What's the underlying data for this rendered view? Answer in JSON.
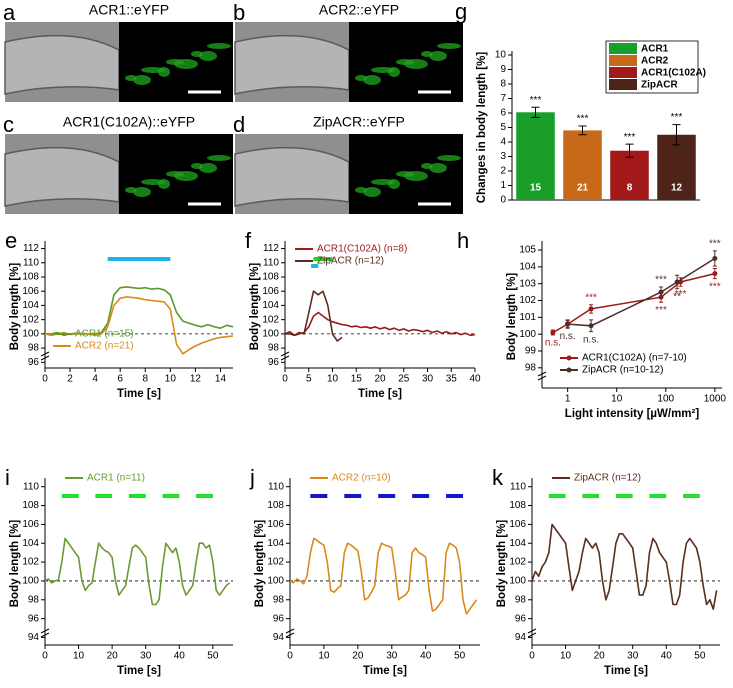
{
  "image_panels": [
    {
      "letter": "a",
      "label": "ACR1::eYFP"
    },
    {
      "letter": "b",
      "label": "ACR2::eYFP"
    },
    {
      "letter": "c",
      "label": "ACR1(C102A)::eYFP"
    },
    {
      "letter": "d",
      "label": "ZipACR::eYFP"
    }
  ],
  "chart_data": [
    {
      "type": "bar",
      "panel": "g",
      "ylabel": "Changes in body length [%]",
      "categories": [
        "ACR1",
        "ACR2",
        "ACR1(C102A)",
        "ZipACR"
      ],
      "values": [
        6.05,
        4.8,
        3.4,
        4.5
      ],
      "errors": [
        0.35,
        0.3,
        0.45,
        0.7
      ],
      "colors": [
        "#1a9e2a",
        "#c8691a",
        "#a31818",
        "#4e2418"
      ],
      "n": [
        15,
        21,
        8,
        12
      ],
      "significance": [
        "***",
        "***",
        "***",
        "***"
      ],
      "ylim": [
        0,
        10
      ],
      "yticks": [
        0,
        1,
        2,
        3,
        4,
        5,
        6,
        7,
        8,
        9,
        10
      ],
      "legend": "top-right"
    },
    {
      "type": "line",
      "panel": "e",
      "xlabel": "Time [s]",
      "ylabel": "Body length [%]",
      "x": [
        0,
        0.5,
        1,
        1.5,
        2,
        2.5,
        3,
        3.5,
        4,
        4.5,
        5,
        5.5,
        6,
        6.5,
        7,
        7.5,
        8,
        8.5,
        9,
        9.5,
        10,
        10.5,
        11,
        11.5,
        12,
        12.5,
        13,
        13.5,
        14,
        14.5,
        15
      ],
      "series": [
        {
          "name": "ACR1 (n=15)",
          "color": "#5a9a2a",
          "values": [
            100,
            100,
            100.2,
            99.8,
            100,
            100.1,
            100,
            100,
            100,
            100.2,
            101.5,
            105.5,
            106.5,
            106.6,
            106.5,
            106.4,
            106.5,
            106.3,
            106.4,
            106.2,
            105.5,
            103,
            101.8,
            101.5,
            101.2,
            101,
            101.3,
            101,
            100.8,
            101.2,
            101
          ]
        },
        {
          "name": "ACR2 (n=21)",
          "color": "#d98a1a",
          "values": [
            100,
            99.8,
            100,
            100.2,
            99.9,
            100,
            100.1,
            100,
            99.8,
            100,
            101,
            104,
            105,
            105.2,
            105.1,
            105,
            104.8,
            104.7,
            104.6,
            104.5,
            103.5,
            98.5,
            97.2,
            97.8,
            98.3,
            98.7,
            99,
            99.3,
            99.5,
            99.6,
            99.7
          ]
        }
      ],
      "reference": 100,
      "stimuli": [
        {
          "color": "#1eb4e6",
          "ranges": [
            [
              5,
              10
            ]
          ]
        }
      ],
      "xlim": [
        0,
        15
      ],
      "xticks": [
        0,
        2,
        4,
        6,
        8,
        10,
        12,
        14
      ],
      "ylim": [
        95.2,
        112.5
      ],
      "yticks": [
        96,
        98,
        100,
        102,
        104,
        106,
        108,
        110,
        112
      ],
      "legend": "lower-left"
    },
    {
      "type": "line",
      "panel": "f",
      "xlabel": "Time [s]",
      "ylabel": "Body length [%]",
      "x": [
        0,
        1,
        2,
        3,
        4,
        5,
        6,
        7,
        8,
        9,
        10,
        11,
        12,
        13,
        14,
        15,
        16,
        17,
        18,
        19,
        20,
        21,
        22,
        23,
        24,
        25,
        26,
        27,
        28,
        29,
        30,
        31,
        32,
        33,
        34,
        35,
        36,
        37,
        38,
        39,
        40
      ],
      "series": [
        {
          "name": "ACR1(C102A) (n=8)",
          "color": "#9b1b1b",
          "values": [
            100,
            100.3,
            99.8,
            100,
            100.2,
            101,
            102.5,
            103,
            102.5,
            102,
            101.7,
            101.5,
            101.3,
            101.2,
            101,
            101.1,
            100.9,
            101,
            100.8,
            101,
            100.7,
            100.9,
            100.6,
            100.8,
            100.5,
            100.7,
            100.4,
            100.6,
            100.5,
            100.3,
            100.5,
            100.2,
            100.4,
            100.1,
            100.3,
            100,
            100.2,
            99.9,
            100.1,
            99.8,
            99.9
          ]
        },
        {
          "name": "ZipACR (n=12)",
          "color": "#5a2e1e",
          "values": [
            100,
            100,
            99.8,
            100.2,
            100,
            103,
            106,
            105.5,
            106,
            104,
            100,
            99,
            99.5,
            null,
            null,
            null,
            null,
            null,
            null,
            null,
            null,
            null,
            null,
            null,
            null,
            null,
            null,
            null,
            null,
            null,
            null,
            null,
            null,
            null,
            null,
            null,
            null,
            null,
            null,
            null,
            null
          ]
        }
      ],
      "reference": 100,
      "stimuli": [
        {
          "color": "#22d42a",
          "ranges": [
            [
              6,
              10
            ]
          ]
        },
        {
          "color": "#1eb4e6",
          "ranges": [
            [
              5.5,
              7
            ]
          ]
        }
      ],
      "xlim": [
        0,
        40
      ],
      "xticks": [
        0,
        5,
        10,
        15,
        20,
        25,
        30,
        35,
        40
      ],
      "ylim": [
        95.2,
        112.5
      ],
      "yticks": [
        96,
        98,
        100,
        102,
        104,
        106,
        108,
        110,
        112
      ],
      "legend": "top-left"
    },
    {
      "type": "scatter-line",
      "panel": "h",
      "xlabel": "Light intensity [µW/mm²]",
      "ylabel": "Body length [%]",
      "xlog": true,
      "series": [
        {
          "name": "ACR1(C102A) (n=7-10)",
          "color": "#9b1b1b",
          "x": [
            0.5,
            1,
            3,
            80,
            200,
            1000
          ],
          "values": [
            100.1,
            100.6,
            101.5,
            102.2,
            103.1,
            103.6
          ],
          "errors": [
            0.15,
            0.2,
            0.25,
            0.3,
            0.25,
            0.3
          ],
          "point_labels": [
            "n.s.",
            null,
            "***",
            "***",
            "***",
            "***"
          ]
        },
        {
          "name": "ZipACR (n=10-12)",
          "color": "#4e2e26",
          "x": [
            1,
            3,
            80,
            170,
            1000
          ],
          "values": [
            100.6,
            100.5,
            102.5,
            103.1,
            104.5
          ],
          "errors": [
            0.25,
            0.35,
            0.3,
            0.4,
            0.45
          ],
          "point_labels": [
            "n.s.",
            "n.s.",
            "***",
            "**",
            "***"
          ]
        }
      ],
      "xlim": [
        0.3,
        1400
      ],
      "xticks": [
        1,
        10,
        100,
        1000
      ],
      "ylim": [
        96.8,
        105.3
      ],
      "yticks": [
        98,
        99,
        100,
        101,
        102,
        103,
        104,
        105
      ],
      "legend": "lower-right"
    },
    {
      "type": "line",
      "panel": "i",
      "xlabel": "Time [s]",
      "ylabel": "Body length [%]",
      "x": [
        0,
        1,
        2,
        3,
        4,
        5,
        6,
        7,
        8,
        9,
        10,
        11,
        12,
        13,
        14,
        15,
        16,
        17,
        18,
        19,
        20,
        21,
        22,
        23,
        24,
        25,
        26,
        27,
        28,
        29,
        30,
        31,
        32,
        33,
        34,
        35,
        36,
        37,
        38,
        39,
        40,
        41,
        42,
        43,
        44,
        45,
        46,
        47,
        48,
        49,
        50,
        51,
        52,
        53,
        54,
        55
      ],
      "series": [
        {
          "name": "ACR1 (n=11)",
          "color": "#6a9a30",
          "values": [
            100,
            100.2,
            99.8,
            100,
            100.1,
            102,
            104.5,
            104,
            103.5,
            103,
            102.5,
            100,
            99,
            99.5,
            99.8,
            102,
            104,
            103.5,
            103.2,
            103,
            102.5,
            100,
            98.5,
            99,
            99.5,
            101.5,
            103.5,
            103.8,
            103.5,
            103,
            102.5,
            99.5,
            97.5,
            97.5,
            98,
            101.5,
            104,
            103.5,
            103,
            103.5,
            102,
            99.5,
            98.5,
            99,
            99.5,
            102,
            104,
            104,
            103.5,
            103.8,
            102,
            99,
            98.5,
            99,
            99.5,
            99.8
          ]
        }
      ],
      "reference": 100,
      "stimuli": [
        {
          "color": "#22e02a",
          "ranges": [
            [
              5,
              10
            ],
            [
              15,
              20
            ],
            [
              25,
              30
            ],
            [
              35,
              40
            ],
            [
              45,
              50
            ]
          ]
        }
      ],
      "xlim": [
        0,
        56
      ],
      "xticks": [
        0,
        10,
        20,
        30,
        40,
        50
      ],
      "ylim": [
        93.2,
        110.5
      ],
      "yticks": [
        94,
        96,
        98,
        100,
        102,
        104,
        106,
        108,
        110
      ],
      "legend": "top-left"
    },
    {
      "type": "line",
      "panel": "j",
      "xlabel": "Time [s]",
      "ylabel": "Body length [%]",
      "x": [
        0,
        1,
        2,
        3,
        4,
        5,
        6,
        7,
        8,
        9,
        10,
        11,
        12,
        13,
        14,
        15,
        16,
        17,
        18,
        19,
        20,
        21,
        22,
        23,
        24,
        25,
        26,
        27,
        28,
        29,
        30,
        31,
        32,
        33,
        34,
        35,
        36,
        37,
        38,
        39,
        40,
        41,
        42,
        43,
        44,
        45,
        46,
        47,
        48,
        49,
        50,
        51,
        52,
        53,
        54,
        55
      ],
      "series": [
        {
          "name": "ACR2 (n=10)",
          "color": "#d98a1a",
          "values": [
            100,
            99.8,
            100.2,
            100,
            99.7,
            100.5,
            103,
            104.5,
            104.3,
            104,
            103.8,
            102,
            99,
            98.8,
            99.2,
            99.5,
            103,
            104,
            103.8,
            103.5,
            103.2,
            101,
            98,
            98.2,
            98.8,
            99.5,
            103,
            104,
            103.8,
            103.7,
            103.5,
            101,
            98,
            98.3,
            98.5,
            99,
            103,
            103.5,
            103,
            102.8,
            102.5,
            99,
            96.8,
            97,
            97.5,
            98,
            103,
            104,
            103.8,
            103.5,
            102,
            98,
            96.5,
            97,
            97.5,
            98
          ]
        }
      ],
      "reference": 100,
      "stimuli": [
        {
          "color": "#1414c8",
          "ranges": [
            [
              6,
              11
            ],
            [
              16,
              21
            ],
            [
              26,
              31
            ],
            [
              36,
              41
            ],
            [
              46,
              51
            ]
          ]
        }
      ],
      "xlim": [
        0,
        56
      ],
      "xticks": [
        0,
        10,
        20,
        30,
        40,
        50
      ],
      "ylim": [
        93.2,
        110.5
      ],
      "yticks": [
        94,
        96,
        98,
        100,
        102,
        104,
        106,
        108,
        110
      ],
      "legend": "top-left"
    },
    {
      "type": "line",
      "panel": "k",
      "xlabel": "Time [s]",
      "ylabel": "Body length [%]",
      "x": [
        0,
        1,
        2,
        3,
        4,
        5,
        6,
        7,
        8,
        9,
        10,
        11,
        12,
        13,
        14,
        15,
        16,
        17,
        18,
        19,
        20,
        21,
        22,
        23,
        24,
        25,
        26,
        27,
        28,
        29,
        30,
        31,
        32,
        33,
        34,
        35,
        36,
        37,
        38,
        39,
        40,
        41,
        42,
        43,
        44,
        45,
        46,
        47,
        48,
        49,
        50,
        51,
        52,
        53,
        54,
        55
      ],
      "series": [
        {
          "name": "ZipACR (n=12)",
          "color": "#5a2e1e",
          "values": [
            100,
            101,
            100.5,
            101.5,
            102,
            103,
            106,
            105.5,
            105,
            104.5,
            104,
            101.5,
            99,
            100,
            101,
            103,
            104.5,
            104,
            103.5,
            104,
            103,
            100,
            98,
            99,
            101.5,
            104,
            105,
            105,
            104.5,
            104,
            103.5,
            101,
            98.5,
            98.5,
            99.5,
            103,
            104.5,
            104,
            103,
            102.5,
            102,
            100,
            97.5,
            97.5,
            98.5,
            102,
            104,
            104.5,
            104,
            103.5,
            102,
            99.5,
            97.5,
            98,
            97,
            99
          ]
        }
      ],
      "reference": 100,
      "stimuli": [
        {
          "color": "#22e02a",
          "ranges": [
            [
              5,
              10
            ],
            [
              15,
              20
            ],
            [
              25,
              30
            ],
            [
              35,
              40
            ],
            [
              45,
              50
            ]
          ]
        }
      ],
      "xlim": [
        0,
        56
      ],
      "xticks": [
        0,
        10,
        20,
        30,
        40,
        50
      ],
      "ylim": [
        93.2,
        110.5
      ],
      "yticks": [
        94,
        96,
        98,
        100,
        102,
        104,
        106,
        108,
        110
      ],
      "legend": "top-left"
    }
  ]
}
